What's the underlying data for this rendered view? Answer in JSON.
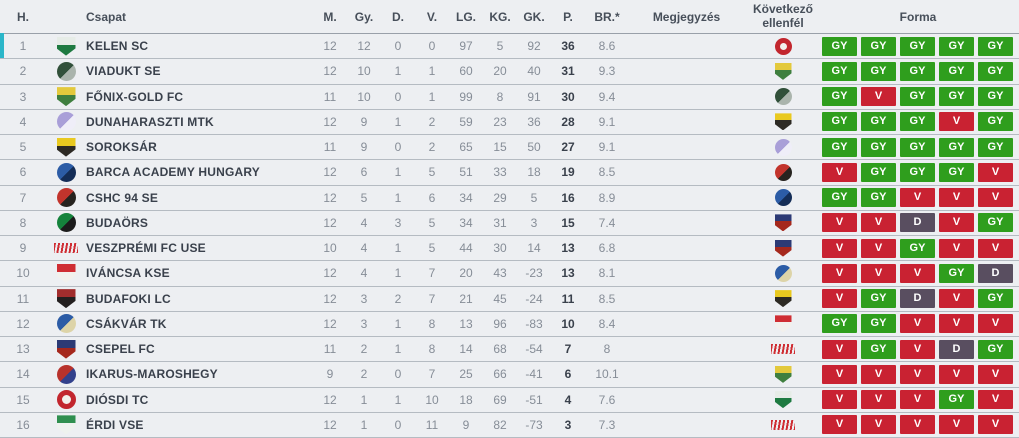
{
  "table": {
    "headers": [
      "H.",
      "Csapat",
      "M.",
      "Gy.",
      "D.",
      "V.",
      "LG.",
      "KG.",
      "GK.",
      "P.",
      "BR.*",
      "Megjegyzés",
      "Következő ellenfél",
      "Forma"
    ],
    "rows": [
      {
        "pos": "1",
        "team": "KELEN SC",
        "crest": "kelen",
        "m": "12",
        "gy": "12",
        "d": "0",
        "v": "0",
        "lg": "97",
        "kg": "5",
        "gk": "92",
        "p": "36",
        "br": "8.6",
        "note": "",
        "next": "diosdi",
        "form": [
          "GY",
          "GY",
          "GY",
          "GY",
          "GY"
        ]
      },
      {
        "pos": "2",
        "team": "VIADUKT SE",
        "crest": "viadukt",
        "m": "12",
        "gy": "10",
        "d": "1",
        "v": "1",
        "lg": "60",
        "kg": "20",
        "gk": "40",
        "p": "31",
        "br": "9.3",
        "note": "",
        "next": "fonix",
        "form": [
          "GY",
          "GY",
          "GY",
          "GY",
          "GY"
        ]
      },
      {
        "pos": "3",
        "team": "FŐNIX-GOLD FC",
        "crest": "fonix",
        "m": "11",
        "gy": "10",
        "d": "0",
        "v": "1",
        "lg": "99",
        "kg": "8",
        "gk": "91",
        "p": "30",
        "br": "9.4",
        "note": "",
        "next": "viadukt",
        "form": [
          "GY",
          "V",
          "GY",
          "GY",
          "GY"
        ]
      },
      {
        "pos": "4",
        "team": "DUNAHARASZTI MTK",
        "crest": "dunaharaszti",
        "m": "12",
        "gy": "9",
        "d": "1",
        "v": "2",
        "lg": "59",
        "kg": "23",
        "gk": "36",
        "p": "28",
        "br": "9.1",
        "note": "",
        "next": "soroksar",
        "form": [
          "GY",
          "GY",
          "GY",
          "V",
          "GY"
        ]
      },
      {
        "pos": "5",
        "team": "SOROKSÁR",
        "crest": "soroksar",
        "m": "11",
        "gy": "9",
        "d": "0",
        "v": "2",
        "lg": "65",
        "kg": "15",
        "gk": "50",
        "p": "27",
        "br": "9.1",
        "note": "",
        "next": "dunaharaszti",
        "form": [
          "GY",
          "GY",
          "GY",
          "GY",
          "GY"
        ]
      },
      {
        "pos": "6",
        "team": "BARCA ACADEMY HUNGARY",
        "crest": "barca",
        "m": "12",
        "gy": "6",
        "d": "1",
        "v": "5",
        "lg": "51",
        "kg": "33",
        "gk": "18",
        "p": "19",
        "br": "8.5",
        "note": "",
        "next": "cshc",
        "form": [
          "V",
          "GY",
          "GY",
          "GY",
          "V"
        ]
      },
      {
        "pos": "7",
        "team": "CSHC 94 SE",
        "crest": "cshc",
        "m": "12",
        "gy": "5",
        "d": "1",
        "v": "6",
        "lg": "34",
        "kg": "29",
        "gk": "5",
        "p": "16",
        "br": "8.9",
        "note": "",
        "next": "barca",
        "form": [
          "GY",
          "GY",
          "V",
          "V",
          "V"
        ]
      },
      {
        "pos": "8",
        "team": "BUDAÖRS",
        "crest": "budaors",
        "m": "12",
        "gy": "4",
        "d": "3",
        "v": "5",
        "lg": "34",
        "kg": "31",
        "gk": "3",
        "p": "15",
        "br": "7.4",
        "note": "",
        "next": "csepel",
        "form": [
          "V",
          "V",
          "D",
          "V",
          "GY"
        ]
      },
      {
        "pos": "9",
        "team": "VESZPRÉMI FC USE",
        "crest": "veszpremi",
        "m": "10",
        "gy": "4",
        "d": "1",
        "v": "5",
        "lg": "44",
        "kg": "30",
        "gk": "14",
        "p": "13",
        "br": "6.8",
        "note": "",
        "next": "csepel",
        "form": [
          "V",
          "V",
          "GY",
          "V",
          "V"
        ]
      },
      {
        "pos": "10",
        "team": "IVÁNCSA KSE",
        "crest": "ivancsa",
        "m": "12",
        "gy": "4",
        "d": "1",
        "v": "7",
        "lg": "20",
        "kg": "43",
        "gk": "-23",
        "p": "13",
        "br": "8.1",
        "note": "",
        "next": "csakvar",
        "form": [
          "V",
          "V",
          "V",
          "GY",
          "D"
        ]
      },
      {
        "pos": "11",
        "team": "BUDAFOKI LC",
        "crest": "budafoki",
        "m": "12",
        "gy": "3",
        "d": "2",
        "v": "7",
        "lg": "21",
        "kg": "45",
        "gk": "-24",
        "p": "11",
        "br": "8.5",
        "note": "",
        "next": "soroksar",
        "form": [
          "V",
          "GY",
          "D",
          "V",
          "GY"
        ]
      },
      {
        "pos": "12",
        "team": "CSÁKVÁR TK",
        "crest": "csakvar",
        "m": "12",
        "gy": "3",
        "d": "1",
        "v": "8",
        "lg": "13",
        "kg": "96",
        "gk": "-83",
        "p": "10",
        "br": "8.4",
        "note": "",
        "next": "ivancsa",
        "form": [
          "GY",
          "GY",
          "V",
          "V",
          "V"
        ]
      },
      {
        "pos": "13",
        "team": "CSEPEL FC",
        "crest": "csepel",
        "m": "11",
        "gy": "2",
        "d": "1",
        "v": "8",
        "lg": "14",
        "kg": "68",
        "gk": "-54",
        "p": "7",
        "br": "8",
        "note": "",
        "next": "veszpremi",
        "form": [
          "V",
          "GY",
          "V",
          "D",
          "GY"
        ]
      },
      {
        "pos": "14",
        "team": "IKARUS-MAROSHEGY",
        "crest": "ikarus",
        "m": "9",
        "gy": "2",
        "d": "0",
        "v": "7",
        "lg": "25",
        "kg": "66",
        "gk": "-41",
        "p": "6",
        "br": "10.1",
        "note": "",
        "next": "fonix",
        "form": [
          "V",
          "V",
          "V",
          "V",
          "V"
        ]
      },
      {
        "pos": "15",
        "team": "DIÓSDI TC",
        "crest": "diosdi",
        "m": "12",
        "gy": "1",
        "d": "1",
        "v": "10",
        "lg": "18",
        "kg": "69",
        "gk": "-51",
        "p": "4",
        "br": "7.6",
        "note": "",
        "next": "kelen",
        "form": [
          "V",
          "V",
          "V",
          "GY",
          "V"
        ]
      },
      {
        "pos": "16",
        "team": "ÉRDI VSE",
        "crest": "erdi",
        "m": "12",
        "gy": "1",
        "d": "0",
        "v": "11",
        "lg": "9",
        "kg": "82",
        "gk": "-73",
        "p": "3",
        "br": "7.3",
        "note": "",
        "next": "veszpremi",
        "form": [
          "V",
          "V",
          "V",
          "V",
          "V"
        ]
      }
    ]
  },
  "form_colors": {
    "GY": "#2f9e1d",
    "V": "#c92232",
    "D": "#594e60"
  },
  "colors": {
    "leader_accent": "#2bb6c9",
    "background": "#edeff2",
    "row_line": "#b5bbc2",
    "header_line": "#99a0a9",
    "text_dark": "#3a414c",
    "text_gray": "#868d97"
  },
  "crests": {
    "kelen": {
      "shape": "shield",
      "c1": "#e6ece7",
      "c2": "#1e7a41"
    },
    "viadukt": {
      "shape": "circle",
      "c1": "#31503a",
      "c2": "#aab4ac"
    },
    "fonix": {
      "shape": "shield",
      "c1": "#e3c93c",
      "c2": "#3f7f3f"
    },
    "dunaharaszti": {
      "shape": "circle",
      "c1": "#a99fd8",
      "c2": "#efeef8"
    },
    "soroksar": {
      "shape": "shield",
      "c1": "#e9c91f",
      "c2": "#2d2a24"
    },
    "barca": {
      "shape": "circle",
      "c1": "#2c5ca6",
      "c2": "#142d57"
    },
    "cshc": {
      "shape": "circle",
      "c1": "#c2342c",
      "c2": "#26231f"
    },
    "budaors": {
      "shape": "circle",
      "c1": "#15833c",
      "c2": "#1c1c1c"
    },
    "veszpremi": {
      "shape": "script",
      "c1": "#cf2d33",
      "c2": "#cf2d33"
    },
    "ivancsa": {
      "shape": "shield",
      "c1": "#cf2d33",
      "c2": "#f2f0ec"
    },
    "budafoki": {
      "shape": "shield",
      "c1": "#a12d2d",
      "c2": "#231f1f"
    },
    "csakvar": {
      "shape": "circle",
      "c1": "#2c5ca6",
      "c2": "#ddd4a8"
    },
    "csepel": {
      "shape": "shield",
      "c1": "#2c3a75",
      "c2": "#a5281d"
    },
    "ikarus": {
      "shape": "circle",
      "c1": "#b8322c",
      "c2": "#32418c"
    },
    "diosdi": {
      "shape": "ring",
      "c1": "#c2262e",
      "c2": "#f2f0ec"
    },
    "erdi": {
      "shape": "shield",
      "c1": "#2f8f4f",
      "c2": "#eef2ee"
    }
  }
}
